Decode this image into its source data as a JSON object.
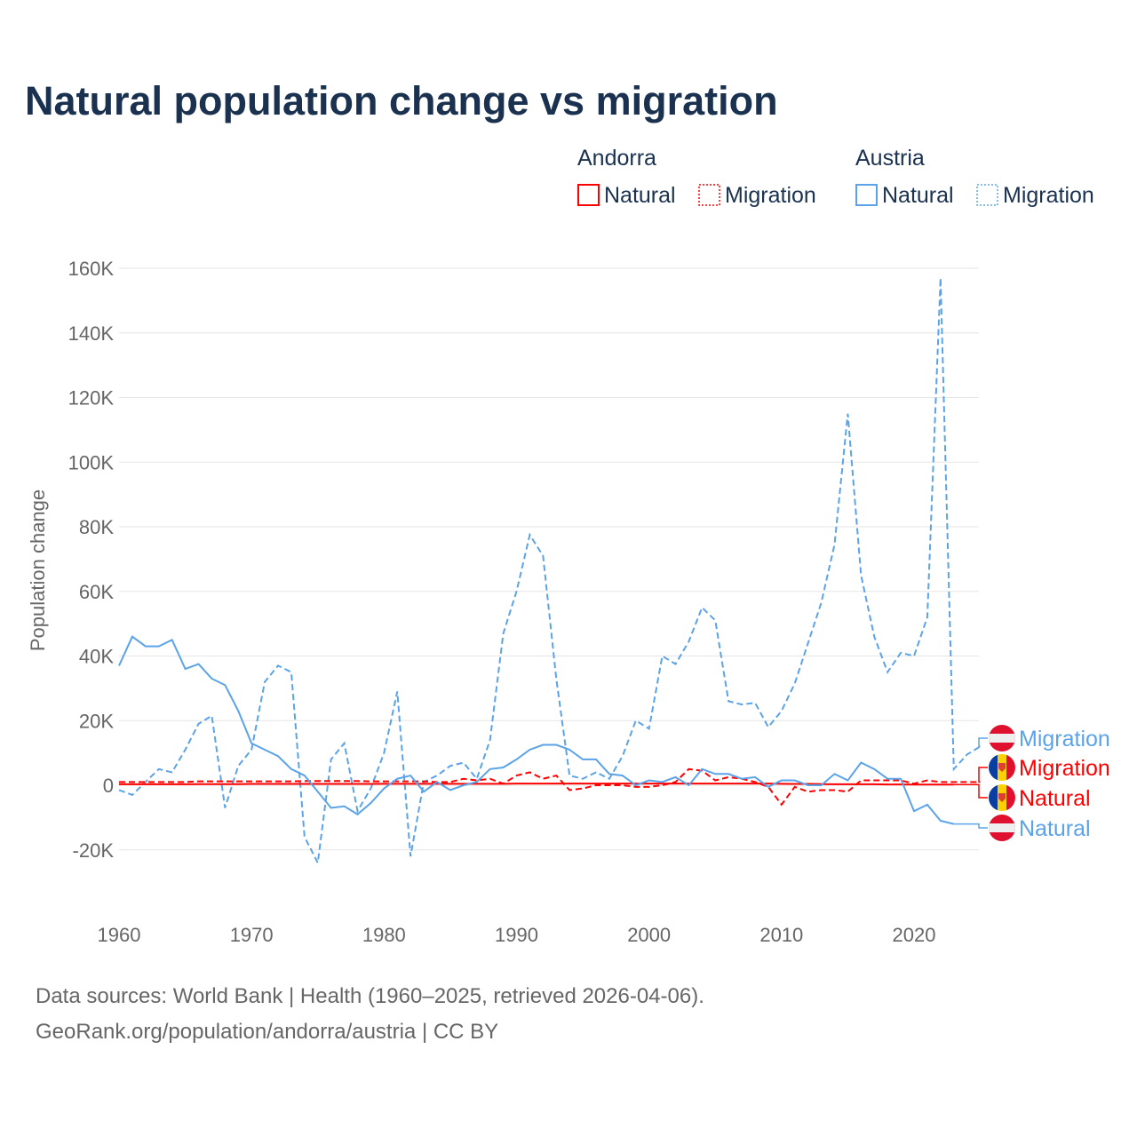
{
  "chart_data": {
    "type": "line",
    "title": "Natural population change vs migration",
    "ylabel": "Population change",
    "xlabel": "",
    "xlim": [
      1960,
      2025
    ],
    "ylim": [
      -30000,
      165000
    ],
    "yticks": [
      -20000,
      0,
      20000,
      40000,
      60000,
      80000,
      100000,
      120000,
      140000,
      160000
    ],
    "ytick_labels": [
      "-20K",
      "0",
      "20K",
      "40K",
      "60K",
      "80K",
      "100K",
      "120K",
      "140K",
      "160K"
    ],
    "xticks": [
      1960,
      1970,
      1980,
      1990,
      2000,
      2010,
      2020
    ],
    "xtick_labels": [
      "1960",
      "1970",
      "1980",
      "1990",
      "2000",
      "2010",
      "2020"
    ],
    "grid": true,
    "legend": {
      "placement": "top-right",
      "groups": [
        {
          "country": "Andorra",
          "entries": [
            "Natural",
            "Migration"
          ]
        },
        {
          "country": "Austria",
          "entries": [
            "Natural",
            "Migration"
          ]
        }
      ]
    },
    "series": [
      {
        "name": "Austria Migration",
        "country": "Austria",
        "label": "Migration",
        "color": "#5ba3e8",
        "dash": true,
        "start": 1960,
        "values": [
          -1500,
          -3000,
          1000,
          5000,
          4000,
          11000,
          19000,
          21500,
          -7000,
          6000,
          11000,
          32000,
          37000,
          35000,
          -16000,
          -24000,
          8000,
          13000,
          -8000,
          -1000,
          10000,
          29000,
          -22000,
          1000,
          3000,
          6000,
          7000,
          2000,
          14000,
          47000,
          60000,
          77500,
          71000,
          33000,
          3000,
          2000,
          4000,
          2000,
          9000,
          20000,
          17500,
          40000,
          37500,
          44500,
          55000,
          51000,
          26000,
          25000,
          25500,
          18000,
          23000,
          31500,
          44000,
          56500,
          74500,
          115000,
          65000,
          46000,
          35000,
          41000,
          40000,
          52000,
          157000,
          5000,
          9500,
          12000
        ]
      },
      {
        "name": "Andorra Migration",
        "country": "Andorra",
        "label": "Migration",
        "color": "#ff0000",
        "dash": true,
        "start": 1960,
        "values": [
          1000,
          1000,
          1000,
          1000,
          1000,
          1000,
          1200,
          1200,
          1200,
          1200,
          1200,
          1200,
          1200,
          1200,
          1300,
          1300,
          1300,
          1300,
          1300,
          1200,
          1200,
          1200,
          1200,
          1200,
          1000,
          1000,
          2000,
          1500,
          2000,
          500,
          3000,
          4000,
          2000,
          3000,
          -1500,
          -1000,
          0,
          0,
          0,
          -500,
          -500,
          0,
          1000,
          5000,
          4500,
          1500,
          2500,
          2000,
          1000,
          -500,
          -6000,
          -500,
          -2000,
          -1500,
          -1500,
          -2000,
          1500,
          1500,
          1500,
          1500,
          500,
          1500,
          1000,
          1000,
          1000,
          1000
        ]
      },
      {
        "name": "Andorra Natural",
        "country": "Andorra",
        "label": "Natural",
        "color": "#ff0000",
        "dash": false,
        "start": 1960,
        "values": [
          300,
          300,
          300,
          300,
          300,
          300,
          350,
          350,
          350,
          350,
          400,
          400,
          400,
          400,
          400,
          400,
          400,
          400,
          400,
          400,
          450,
          450,
          450,
          450,
          450,
          450,
          450,
          450,
          450,
          450,
          500,
          500,
          500,
          500,
          500,
          500,
          500,
          500,
          500,
          500,
          500,
          500,
          500,
          500,
          500,
          500,
          500,
          500,
          500,
          500,
          450,
          400,
          400,
          350,
          300,
          300,
          300,
          300,
          250,
          250,
          200,
          200,
          200,
          200
        ]
      },
      {
        "name": "Austria Natural",
        "country": "Austria",
        "label": "Natural",
        "color": "#5ba3e8",
        "dash": false,
        "start": 1960,
        "values": [
          37000,
          46000,
          43000,
          43000,
          45000,
          36000,
          37500,
          33000,
          31000,
          23000,
          13000,
          11000,
          9000,
          5000,
          3000,
          -2000,
          -7000,
          -6500,
          -9000,
          -5500,
          -1000,
          2000,
          3000,
          -2000,
          1000,
          -1500,
          0,
          1000,
          5000,
          5500,
          8000,
          11000,
          12500,
          12500,
          11000,
          8000,
          8000,
          3500,
          3000,
          0,
          1500,
          1000,
          2500,
          0,
          5000,
          3500,
          3500,
          2000,
          2500,
          -500,
          1500,
          1500,
          0,
          0,
          3500,
          1500,
          7000,
          5000,
          2000,
          2000,
          -8000,
          -6000,
          -11000,
          -12000
        ]
      }
    ],
    "end_labels": [
      {
        "text": "Migration",
        "country": "Austria",
        "color": "#5ba3e8"
      },
      {
        "text": "Migration",
        "country": "Andorra",
        "color": "#ff0000"
      },
      {
        "text": "Natural",
        "country": "Andorra",
        "color": "#ff0000"
      },
      {
        "text": "Natural",
        "country": "Austria",
        "color": "#5ba3e8"
      }
    ]
  },
  "footer": {
    "line1": "Data sources: World Bank | Health (1960–2025, retrieved 2026-04-06).",
    "line2": "GeoRank.org/population/andorra/austria | CC BY"
  }
}
